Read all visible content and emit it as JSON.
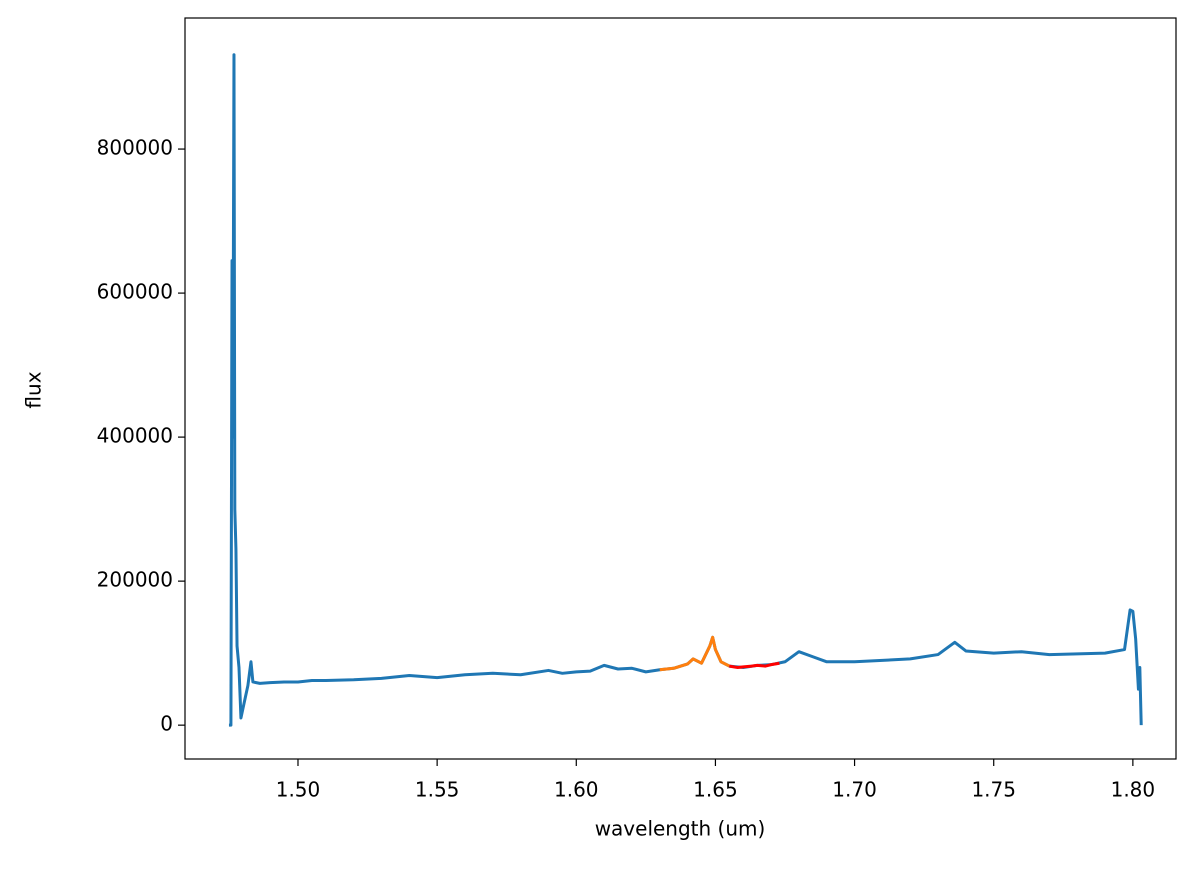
{
  "chart_data": {
    "type": "line",
    "xlabel": "wavelength (um)",
    "ylabel": "flux",
    "xlim": [
      1.4594,
      1.8155
    ],
    "ylim": [
      -47000,
      982000
    ],
    "xticks": [
      {
        "value": 1.5,
        "label": "1.50"
      },
      {
        "value": 1.55,
        "label": "1.55"
      },
      {
        "value": 1.6,
        "label": "1.60"
      },
      {
        "value": 1.65,
        "label": "1.65"
      },
      {
        "value": 1.7,
        "label": "1.70"
      },
      {
        "value": 1.75,
        "label": "1.75"
      },
      {
        "value": 1.8,
        "label": "1.80"
      }
    ],
    "yticks": [
      0,
      200000,
      400000,
      600000,
      800000
    ],
    "series": [
      {
        "color": "#1f77b4",
        "x": [
          1.4752,
          1.4759,
          1.4763,
          1.4766,
          1.477,
          1.4773,
          1.4777,
          1.4781,
          1.4788,
          1.4795,
          1.4806,
          1.482,
          1.4831,
          1.4838,
          1.4863,
          1.49,
          1.495,
          1.5,
          1.505,
          1.51,
          1.52,
          1.53,
          1.54,
          1.55,
          1.56,
          1.57,
          1.58,
          1.59,
          1.595,
          1.6,
          1.605,
          1.61,
          1.615,
          1.62,
          1.625,
          1.63,
          1.635,
          1.64,
          1.642,
          1.645,
          1.648,
          1.649,
          1.65,
          1.652,
          1.655,
          1.66,
          1.665,
          1.67,
          1.675,
          1.68,
          1.685,
          1.69,
          1.7,
          1.71,
          1.72,
          1.73,
          1.736,
          1.74,
          1.75,
          1.76,
          1.77,
          1.78,
          1.79,
          1.797,
          1.799,
          1.8,
          1.801,
          1.802,
          1.8025,
          1.803
        ],
        "values": [
          0,
          0,
          645000,
          400000,
          931000,
          300000,
          245000,
          110000,
          80000,
          10000,
          30000,
          55000,
          88000,
          60000,
          58000,
          59000,
          60000,
          60000,
          62000,
          62000,
          63000,
          65000,
          69000,
          66000,
          70000,
          72000,
          70000,
          76000,
          72000,
          74000,
          75000,
          83000,
          78000,
          79000,
          74000,
          77000,
          79000,
          85000,
          92000,
          86000,
          110000,
          122000,
          105000,
          88000,
          82000,
          80000,
          83000,
          84000,
          88000,
          102000,
          95000,
          88000,
          88000,
          90000,
          92000,
          98000,
          115000,
          103000,
          100000,
          102000,
          98000,
          99000,
          100000,
          105000,
          160000,
          158000,
          120000,
          50000,
          80000,
          0
        ]
      },
      {
        "color": "#ff7f0e",
        "x": [
          1.63,
          1.635,
          1.64,
          1.642,
          1.645,
          1.648,
          1.649,
          1.65,
          1.652,
          1.655
        ],
        "values": [
          77000,
          79000,
          85000,
          92000,
          86000,
          110000,
          122000,
          105000,
          88000,
          82000
        ]
      },
      {
        "color": "#ff0000",
        "x": [
          1.655,
          1.658,
          1.66,
          1.663,
          1.665,
          1.668,
          1.67,
          1.673
        ],
        "values": [
          82000,
          80000,
          81000,
          82000,
          83000,
          82000,
          84000,
          86000
        ]
      }
    ]
  }
}
